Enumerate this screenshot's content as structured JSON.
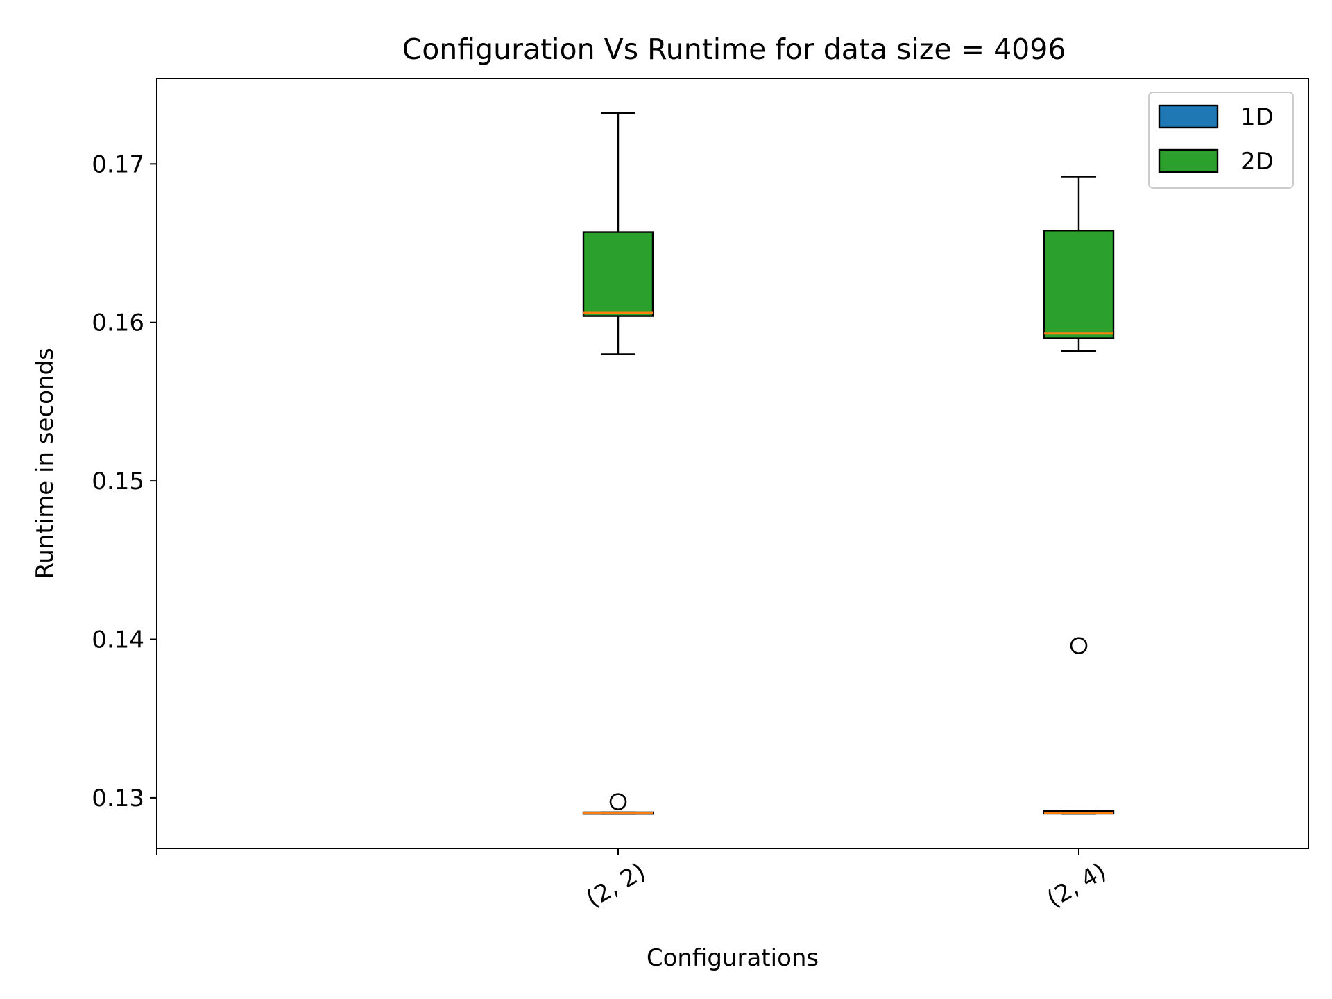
{
  "chart_data": {
    "type": "box",
    "title": "Configuration Vs Runtime for data size = 4096",
    "xlabel": "Configurations",
    "ylabel": "Runtime in seconds",
    "categories": [
      "(2, 2)",
      "(2, 4)"
    ],
    "ylim": [
      0.1268,
      0.1754
    ],
    "yticks": [
      0.13,
      0.14,
      0.15,
      0.16,
      0.17
    ],
    "ytick_labels": [
      "0.13",
      "0.14",
      "0.15",
      "0.16",
      "0.17"
    ],
    "grid": false,
    "legend_position": "top-right",
    "median_color": "#ff7f0e",
    "series": [
      {
        "name": "1D",
        "color": "#1f77b4",
        "boxes": [
          {
            "category": "(2, 2)",
            "whisker_low": 0.12898,
            "q1": 0.12898,
            "median": 0.12902,
            "q3": 0.12908,
            "whisker_high": 0.12908,
            "outliers": [
              0.12975
            ]
          },
          {
            "category": "(2, 4)",
            "whisker_low": 0.12898,
            "q1": 0.12899,
            "median": 0.12905,
            "q3": 0.12916,
            "whisker_high": 0.12918,
            "outliers": []
          }
        ]
      },
      {
        "name": "2D",
        "color": "#2ca02c",
        "boxes": [
          {
            "category": "(2, 2)",
            "whisker_low": 0.158,
            "q1": 0.1604,
            "median": 0.1606,
            "q3": 0.1657,
            "whisker_high": 0.1732,
            "outliers": []
          },
          {
            "category": "(2, 4)",
            "whisker_low": 0.1582,
            "q1": 0.159,
            "median": 0.1593,
            "q3": 0.1658,
            "whisker_high": 0.1692,
            "outliers": [
              0.1396
            ]
          }
        ]
      }
    ]
  }
}
